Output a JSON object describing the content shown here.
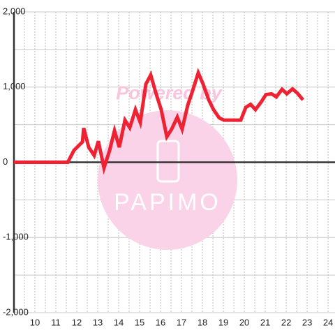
{
  "chart_data": {
    "type": "line",
    "watermark": {
      "top": "Powered by",
      "bottom": "PAPIMO"
    },
    "x": [
      9,
      11.57,
      11.87,
      12.27,
      12.33,
      12.57,
      12.83,
      13.03,
      13.3,
      13.57,
      13.8,
      14.03,
      14.3,
      14.53,
      14.8,
      15.03,
      15.3,
      15.53,
      15.8,
      16.03,
      16.3,
      16.53,
      16.8,
      17.03,
      17.3,
      17.53,
      17.8,
      18.03,
      18.3,
      18.53,
      18.8,
      19.03,
      19.83,
      20.07,
      20.3,
      20.53,
      20.8,
      21.03,
      21.3,
      21.53,
      21.8,
      22.03,
      22.3,
      22.53,
      22.8
    ],
    "series": [
      {
        "color": "#ee2233",
        "values": [
          0,
          0,
          160,
          270,
          455,
          200,
          90,
          280,
          -75,
          160,
          420,
          200,
          560,
          460,
          700,
          530,
          1040,
          1160,
          900,
          700,
          340,
          440,
          600,
          440,
          760,
          950,
          1190,
          1040,
          830,
          700,
          590,
          560,
          560,
          730,
          770,
          700,
          800,
          900,
          910,
          870,
          970,
          910,
          975,
          920,
          830
        ]
      }
    ],
    "xlim": [
      9,
      24.33
    ],
    "xticks": [
      10,
      11,
      12,
      13,
      14,
      15,
      16,
      17,
      18,
      19,
      20,
      21,
      22,
      23,
      24
    ],
    "ylim": [
      -2000,
      2000
    ],
    "yticks": [
      {
        "value": -2000,
        "label": "-2,000"
      },
      {
        "value": -1000,
        "label": "-1,000"
      },
      0,
      {
        "value": 1000,
        "label": "1,000"
      },
      {
        "value": 2000,
        "label": "2,000"
      }
    ],
    "grid": true
  }
}
